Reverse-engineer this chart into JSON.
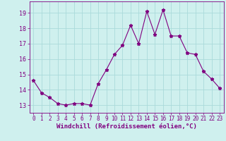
{
  "x": [
    0,
    1,
    2,
    3,
    4,
    5,
    6,
    7,
    8,
    9,
    10,
    11,
    12,
    13,
    14,
    15,
    16,
    17,
    18,
    19,
    20,
    21,
    22,
    23
  ],
  "y": [
    14.6,
    13.8,
    13.5,
    13.1,
    13.0,
    13.1,
    13.1,
    13.0,
    14.4,
    15.3,
    16.3,
    16.9,
    18.2,
    17.0,
    19.1,
    17.6,
    19.2,
    17.5,
    17.5,
    16.4,
    16.3,
    15.2,
    14.7,
    14.1
  ],
  "line_color": "#800080",
  "marker": "*",
  "marker_size": 3.5,
  "bg_color": "#cff0ee",
  "grid_color": "#aadada",
  "xlabel": "Windchill (Refroidissement éolien,°C)",
  "ylim": [
    12.5,
    19.75
  ],
  "xlim": [
    -0.5,
    23.5
  ],
  "yticks": [
    13,
    14,
    15,
    16,
    17,
    18,
    19
  ],
  "xticks": [
    0,
    1,
    2,
    3,
    4,
    5,
    6,
    7,
    8,
    9,
    10,
    11,
    12,
    13,
    14,
    15,
    16,
    17,
    18,
    19,
    20,
    21,
    22,
    23
  ],
  "tick_color": "#800080",
  "label_color": "#800080",
  "spine_color": "#800080",
  "tick_fontsize": 5.5,
  "xlabel_fontsize": 6.5,
  "linewidth": 0.8
}
